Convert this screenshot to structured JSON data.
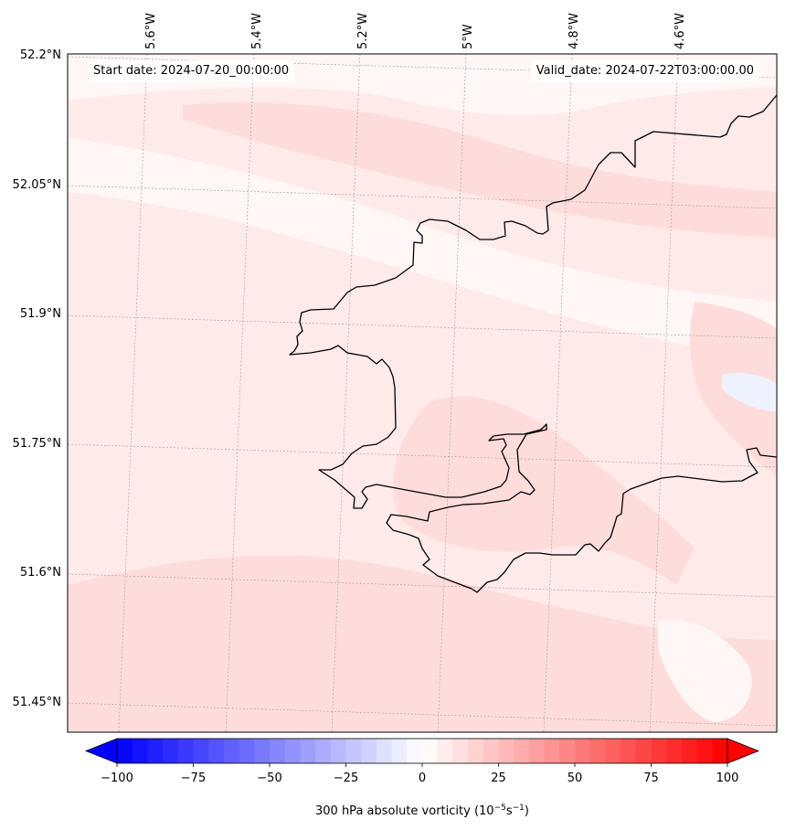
{
  "map": {
    "start_date_text": "Start date: 2024-07-20_00:00:00",
    "valid_date_text": "Valid_date: 2024-07-22T03:00:00.00",
    "lon_labels": [
      "5.6°W",
      "5.4°W",
      "5.2°W",
      "5°W",
      "4.8°W",
      "4.6°W"
    ],
    "lat_labels": [
      "52.2°N",
      "52.05°N",
      "51.9°N",
      "51.75°N",
      "51.6°N",
      "51.45°N"
    ],
    "field_colors": {
      "background": "#ffeaea",
      "light": "#fff6f6",
      "medium": "#ffdcdc",
      "faint_blue": "#eef2ff"
    },
    "coastline_color": "#000000",
    "gridline_style": "dotted"
  },
  "colorbar": {
    "label": "300 hPa absolute vorticity (10",
    "label_exp1": "−5",
    "label_mid": "s",
    "label_exp2": "−1",
    "label_end": ")",
    "ticks": [
      "−100",
      "−75",
      "−50",
      "−25",
      "0",
      "25",
      "50",
      "75",
      "100"
    ],
    "min": -100,
    "max": 100,
    "step": 5,
    "extend": "both",
    "neg_color": "#0000ff",
    "mid_color": "#ffffff",
    "pos_color": "#ff0000"
  }
}
